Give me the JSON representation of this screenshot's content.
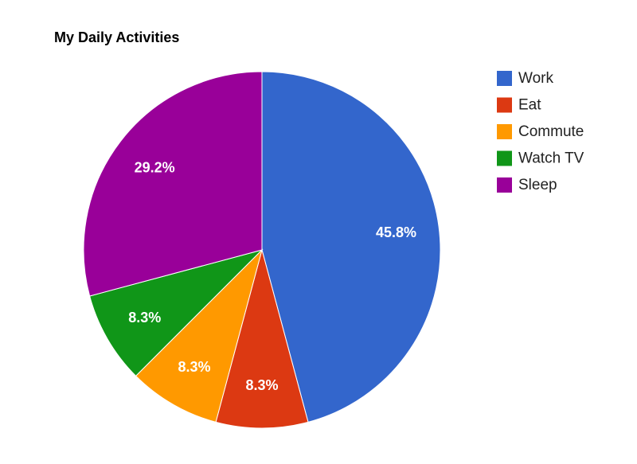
{
  "chart_data": {
    "type": "pie",
    "title": "My Daily Activities",
    "legend_position": "right",
    "slices": [
      {
        "label": "Work",
        "value": 11,
        "percent_label": "45.8%",
        "color": "#3366cc"
      },
      {
        "label": "Eat",
        "value": 2,
        "percent_label": "8.3%",
        "color": "#dc3912"
      },
      {
        "label": "Commute",
        "value": 2,
        "percent_label": "8.3%",
        "color": "#ff9900"
      },
      {
        "label": "Watch TV",
        "value": 2,
        "percent_label": "8.3%",
        "color": "#109618"
      },
      {
        "label": "Sleep",
        "value": 7,
        "percent_label": "29.2%",
        "color": "#990099"
      }
    ]
  }
}
